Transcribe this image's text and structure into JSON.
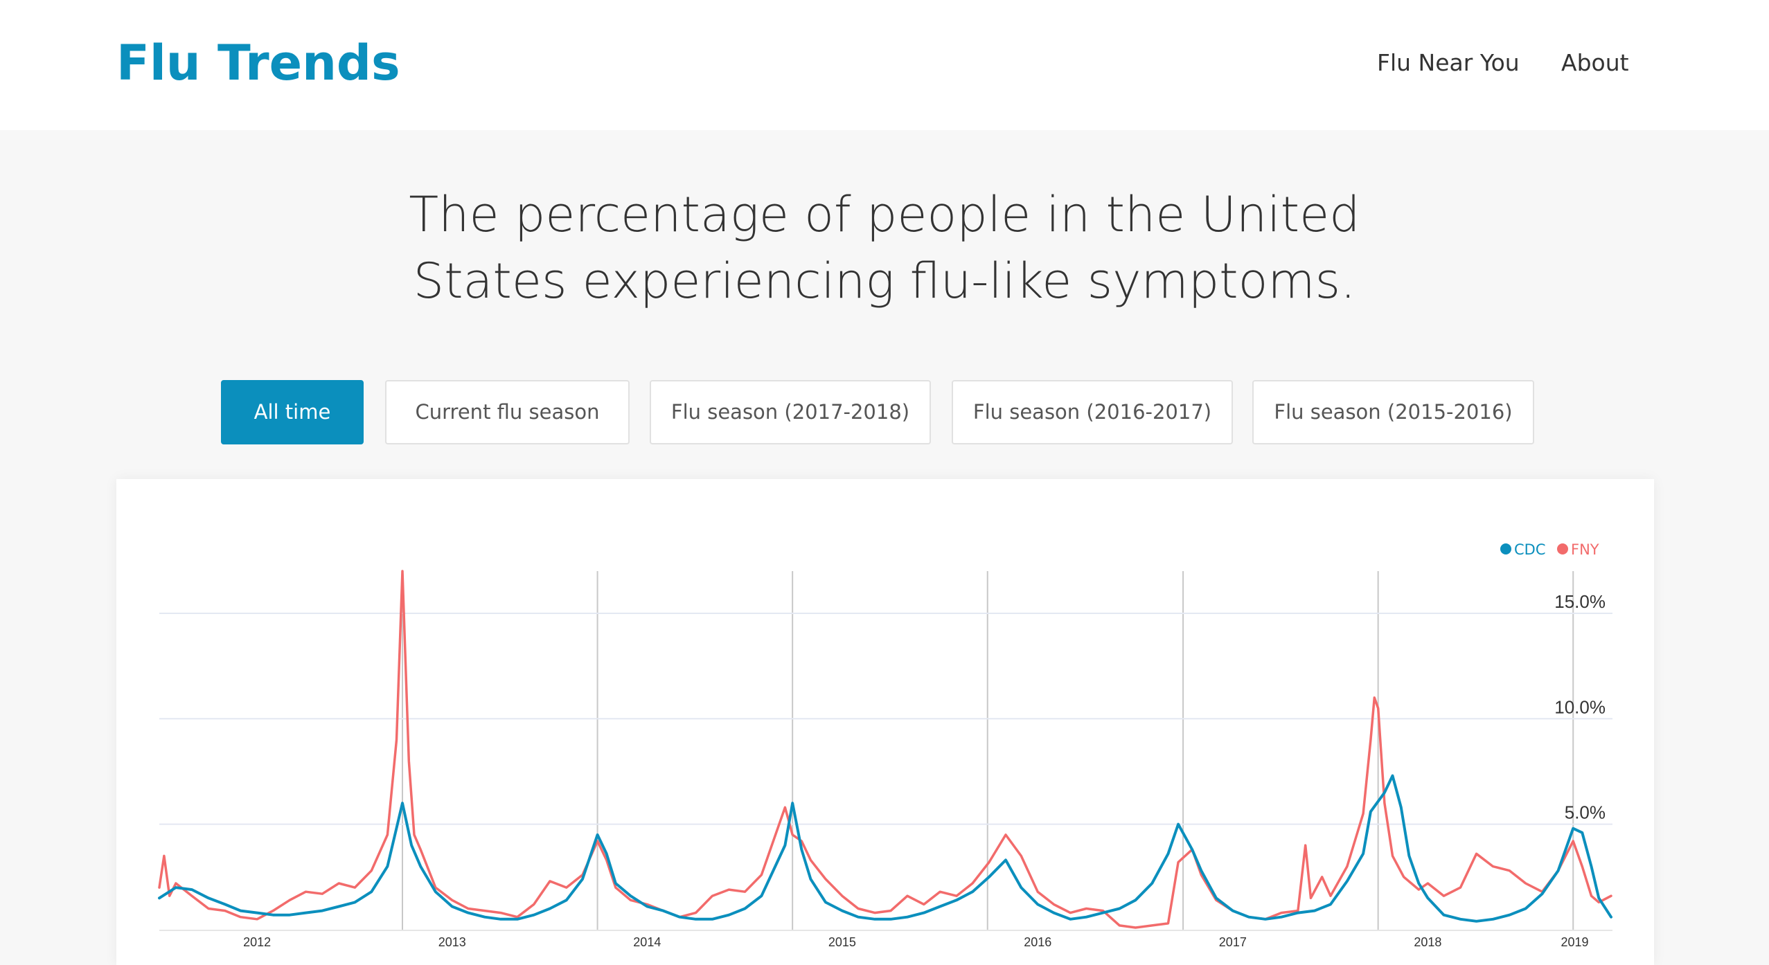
{
  "header": {
    "logo": "Flu Trends",
    "nav": [
      "Flu Near You",
      "About"
    ]
  },
  "headline": {
    "line1": "The percentage of people in the United",
    "line2": "States experiencing flu-like symptoms."
  },
  "tabs": [
    {
      "label": "All time",
      "active": true
    },
    {
      "label": "Current flu season",
      "active": false
    },
    {
      "label": "Flu season (2017-2018)",
      "active": false
    },
    {
      "label": "Flu season (2016-2017)",
      "active": false
    },
    {
      "label": "Flu season (2015-2016)",
      "active": false
    }
  ],
  "colors": {
    "accent": "#0b8fbd",
    "cdc": "#0b8fbd",
    "fny": "#f26b6b"
  },
  "chart_data": {
    "type": "line",
    "title": "",
    "xlabel": "",
    "ylabel": "",
    "ylim": [
      0,
      17
    ],
    "y_ticks": [
      {
        "value": 5,
        "label": "5.0%"
      },
      {
        "value": 10,
        "label": "10.0%"
      },
      {
        "value": 15,
        "label": "15.0%"
      }
    ],
    "x_range": [
      "2011-10-01",
      "2019-03-10"
    ],
    "x_ticks": [
      {
        "date": "2012-04-01",
        "label": "2012"
      },
      {
        "date": "2013-04-01",
        "label": "2013"
      },
      {
        "date": "2014-04-01",
        "label": "2014"
      },
      {
        "date": "2015-04-01",
        "label": "2015"
      },
      {
        "date": "2016-04-01",
        "label": "2016"
      },
      {
        "date": "2017-04-01",
        "label": "2017"
      },
      {
        "date": "2018-04-01",
        "label": "2018"
      },
      {
        "date": "2019-01-01",
        "label": "2019"
      }
    ],
    "season_markers": [
      "2012-12-29",
      "2013-12-29",
      "2014-12-29",
      "2015-12-29",
      "2016-12-29",
      "2017-12-29",
      "2018-12-29"
    ],
    "legend": {
      "position": "top-right",
      "items": [
        "CDC",
        "FNY"
      ]
    },
    "grid": true,
    "series": [
      {
        "name": "CDC",
        "points": [
          [
            "2011-10-01",
            1.5
          ],
          [
            "2011-11-01",
            2.0
          ],
          [
            "2011-12-01",
            1.9
          ],
          [
            "2012-01-01",
            1.5
          ],
          [
            "2012-02-01",
            1.2
          ],
          [
            "2012-03-01",
            0.9
          ],
          [
            "2012-04-01",
            0.8
          ],
          [
            "2012-05-01",
            0.7
          ],
          [
            "2012-06-01",
            0.7
          ],
          [
            "2012-07-01",
            0.8
          ],
          [
            "2012-08-01",
            0.9
          ],
          [
            "2012-09-01",
            1.1
          ],
          [
            "2012-10-01",
            1.3
          ],
          [
            "2012-11-01",
            1.8
          ],
          [
            "2012-12-01",
            3.0
          ],
          [
            "2012-12-29",
            6.0
          ],
          [
            "2013-01-15",
            4.0
          ],
          [
            "2013-02-01",
            3.0
          ],
          [
            "2013-03-01",
            1.8
          ],
          [
            "2013-04-01",
            1.1
          ],
          [
            "2013-05-01",
            0.8
          ],
          [
            "2013-06-01",
            0.6
          ],
          [
            "2013-07-01",
            0.5
          ],
          [
            "2013-08-01",
            0.5
          ],
          [
            "2013-09-01",
            0.7
          ],
          [
            "2013-10-01",
            1.0
          ],
          [
            "2013-11-01",
            1.4
          ],
          [
            "2013-12-01",
            2.4
          ],
          [
            "2013-12-29",
            4.5
          ],
          [
            "2014-01-15",
            3.6
          ],
          [
            "2014-02-01",
            2.2
          ],
          [
            "2014-03-01",
            1.6
          ],
          [
            "2014-04-01",
            1.1
          ],
          [
            "2014-05-01",
            0.9
          ],
          [
            "2014-06-01",
            0.6
          ],
          [
            "2014-07-01",
            0.5
          ],
          [
            "2014-08-01",
            0.5
          ],
          [
            "2014-09-01",
            0.7
          ],
          [
            "2014-10-01",
            1.0
          ],
          [
            "2014-11-01",
            1.6
          ],
          [
            "2014-12-15",
            4.0
          ],
          [
            "2014-12-29",
            6.0
          ],
          [
            "2015-01-15",
            3.8
          ],
          [
            "2015-02-01",
            2.4
          ],
          [
            "2015-03-01",
            1.3
          ],
          [
            "2015-04-01",
            0.9
          ],
          [
            "2015-05-01",
            0.6
          ],
          [
            "2015-06-01",
            0.5
          ],
          [
            "2015-07-01",
            0.5
          ],
          [
            "2015-08-01",
            0.6
          ],
          [
            "2015-09-01",
            0.8
          ],
          [
            "2015-10-01",
            1.1
          ],
          [
            "2015-11-01",
            1.4
          ],
          [
            "2015-12-01",
            1.8
          ],
          [
            "2016-01-01",
            2.5
          ],
          [
            "2016-02-01",
            3.3
          ],
          [
            "2016-03-01",
            2.0
          ],
          [
            "2016-04-01",
            1.2
          ],
          [
            "2016-05-01",
            0.8
          ],
          [
            "2016-06-01",
            0.5
          ],
          [
            "2016-07-01",
            0.6
          ],
          [
            "2016-08-01",
            0.8
          ],
          [
            "2016-09-01",
            1.0
          ],
          [
            "2016-10-01",
            1.4
          ],
          [
            "2016-11-01",
            2.2
          ],
          [
            "2016-12-01",
            3.6
          ],
          [
            "2016-12-20",
            5.0
          ],
          [
            "2017-01-15",
            3.8
          ],
          [
            "2017-02-01",
            2.8
          ],
          [
            "2017-03-01",
            1.5
          ],
          [
            "2017-04-01",
            0.9
          ],
          [
            "2017-05-01",
            0.6
          ],
          [
            "2017-06-01",
            0.5
          ],
          [
            "2017-07-01",
            0.6
          ],
          [
            "2017-08-01",
            0.8
          ],
          [
            "2017-09-01",
            0.9
          ],
          [
            "2017-10-01",
            1.2
          ],
          [
            "2017-11-01",
            2.3
          ],
          [
            "2017-12-01",
            3.6
          ],
          [
            "2017-12-15",
            5.6
          ],
          [
            "2018-01-10",
            6.5
          ],
          [
            "2018-01-25",
            7.3
          ],
          [
            "2018-02-10",
            5.8
          ],
          [
            "2018-02-25",
            3.5
          ],
          [
            "2018-03-15",
            2.2
          ],
          [
            "2018-04-01",
            1.5
          ],
          [
            "2018-05-01",
            0.7
          ],
          [
            "2018-06-01",
            0.5
          ],
          [
            "2018-07-01",
            0.4
          ],
          [
            "2018-08-01",
            0.5
          ],
          [
            "2018-09-01",
            0.7
          ],
          [
            "2018-10-01",
            1.0
          ],
          [
            "2018-11-01",
            1.7
          ],
          [
            "2018-12-01",
            2.8
          ],
          [
            "2018-12-29",
            4.8
          ],
          [
            "2019-01-15",
            4.6
          ],
          [
            "2019-02-01",
            3.0
          ],
          [
            "2019-02-15",
            1.5
          ],
          [
            "2019-03-10",
            0.6
          ]
        ]
      },
      {
        "name": "FNY",
        "points": [
          [
            "2011-10-01",
            2.0
          ],
          [
            "2011-10-10",
            3.5
          ],
          [
            "2011-10-20",
            1.6
          ],
          [
            "2011-11-01",
            2.2
          ],
          [
            "2011-12-01",
            1.6
          ],
          [
            "2012-01-01",
            1.0
          ],
          [
            "2012-02-01",
            0.9
          ],
          [
            "2012-03-01",
            0.6
          ],
          [
            "2012-04-01",
            0.5
          ],
          [
            "2012-05-01",
            0.9
          ],
          [
            "2012-06-01",
            1.4
          ],
          [
            "2012-07-01",
            1.8
          ],
          [
            "2012-08-01",
            1.7
          ],
          [
            "2012-09-01",
            2.2
          ],
          [
            "2012-10-01",
            2.0
          ],
          [
            "2012-11-01",
            2.8
          ],
          [
            "2012-12-01",
            4.5
          ],
          [
            "2012-12-18",
            9.0
          ],
          [
            "2012-12-29",
            17.0
          ],
          [
            "2013-01-10",
            8.0
          ],
          [
            "2013-01-20",
            4.5
          ],
          [
            "2013-02-01",
            3.8
          ],
          [
            "2013-03-01",
            2.0
          ],
          [
            "2013-04-01",
            1.4
          ],
          [
            "2013-05-01",
            1.0
          ],
          [
            "2013-06-01",
            0.9
          ],
          [
            "2013-07-01",
            0.8
          ],
          [
            "2013-08-01",
            0.6
          ],
          [
            "2013-09-01",
            1.2
          ],
          [
            "2013-10-01",
            2.3
          ],
          [
            "2013-11-01",
            2.0
          ],
          [
            "2013-12-01",
            2.6
          ],
          [
            "2013-12-29",
            4.2
          ],
          [
            "2014-01-15",
            3.3
          ],
          [
            "2014-02-01",
            2.0
          ],
          [
            "2014-03-01",
            1.4
          ],
          [
            "2014-04-01",
            1.2
          ],
          [
            "2014-05-01",
            0.9
          ],
          [
            "2014-06-01",
            0.6
          ],
          [
            "2014-07-01",
            0.8
          ],
          [
            "2014-08-01",
            1.6
          ],
          [
            "2014-09-01",
            1.9
          ],
          [
            "2014-10-01",
            1.8
          ],
          [
            "2014-11-01",
            2.6
          ],
          [
            "2014-12-15",
            5.8
          ],
          [
            "2014-12-29",
            4.5
          ],
          [
            "2015-01-15",
            4.2
          ],
          [
            "2015-02-01",
            3.3
          ],
          [
            "2015-03-01",
            2.4
          ],
          [
            "2015-04-01",
            1.6
          ],
          [
            "2015-05-01",
            1.0
          ],
          [
            "2015-06-01",
            0.8
          ],
          [
            "2015-07-01",
            0.9
          ],
          [
            "2015-08-01",
            1.6
          ],
          [
            "2015-09-01",
            1.2
          ],
          [
            "2015-10-01",
            1.8
          ],
          [
            "2015-11-01",
            1.6
          ],
          [
            "2015-12-01",
            2.2
          ],
          [
            "2016-01-01",
            3.2
          ],
          [
            "2016-02-01",
            4.5
          ],
          [
            "2016-03-01",
            3.5
          ],
          [
            "2016-04-01",
            1.8
          ],
          [
            "2016-05-01",
            1.2
          ],
          [
            "2016-06-01",
            0.8
          ],
          [
            "2016-07-01",
            1.0
          ],
          [
            "2016-08-01",
            0.9
          ],
          [
            "2016-09-01",
            0.2
          ],
          [
            "2016-10-01",
            0.1
          ],
          [
            "2016-11-01",
            0.2
          ],
          [
            "2016-12-01",
            0.3
          ],
          [
            "2016-12-20",
            3.2
          ],
          [
            "2017-01-15",
            3.8
          ],
          [
            "2017-02-01",
            2.6
          ],
          [
            "2017-03-01",
            1.4
          ],
          [
            "2017-04-01",
            0.9
          ],
          [
            "2017-05-01",
            0.6
          ],
          [
            "2017-06-01",
            0.5
          ],
          [
            "2017-07-01",
            0.8
          ],
          [
            "2017-08-01",
            0.9
          ],
          [
            "2017-08-15",
            4.0
          ],
          [
            "2017-08-25",
            1.5
          ],
          [
            "2017-09-15",
            2.5
          ],
          [
            "2017-10-01",
            1.6
          ],
          [
            "2017-11-01",
            3.0
          ],
          [
            "2017-12-01",
            5.5
          ],
          [
            "2017-12-15",
            9.0
          ],
          [
            "2017-12-22",
            11.0
          ],
          [
            "2017-12-29",
            10.5
          ],
          [
            "2018-01-10",
            6.0
          ],
          [
            "2018-01-25",
            3.5
          ],
          [
            "2018-02-15",
            2.5
          ],
          [
            "2018-03-15",
            1.9
          ],
          [
            "2018-04-01",
            2.2
          ],
          [
            "2018-05-01",
            1.6
          ],
          [
            "2018-06-01",
            2.0
          ],
          [
            "2018-07-01",
            3.6
          ],
          [
            "2018-08-01",
            3.0
          ],
          [
            "2018-09-01",
            2.8
          ],
          [
            "2018-10-01",
            2.2
          ],
          [
            "2018-11-01",
            1.8
          ],
          [
            "2018-12-01",
            2.8
          ],
          [
            "2018-12-29",
            4.2
          ],
          [
            "2019-01-15",
            3.0
          ],
          [
            "2019-02-01",
            1.6
          ],
          [
            "2019-02-15",
            1.3
          ],
          [
            "2019-03-10",
            1.6
          ]
        ]
      }
    ]
  }
}
